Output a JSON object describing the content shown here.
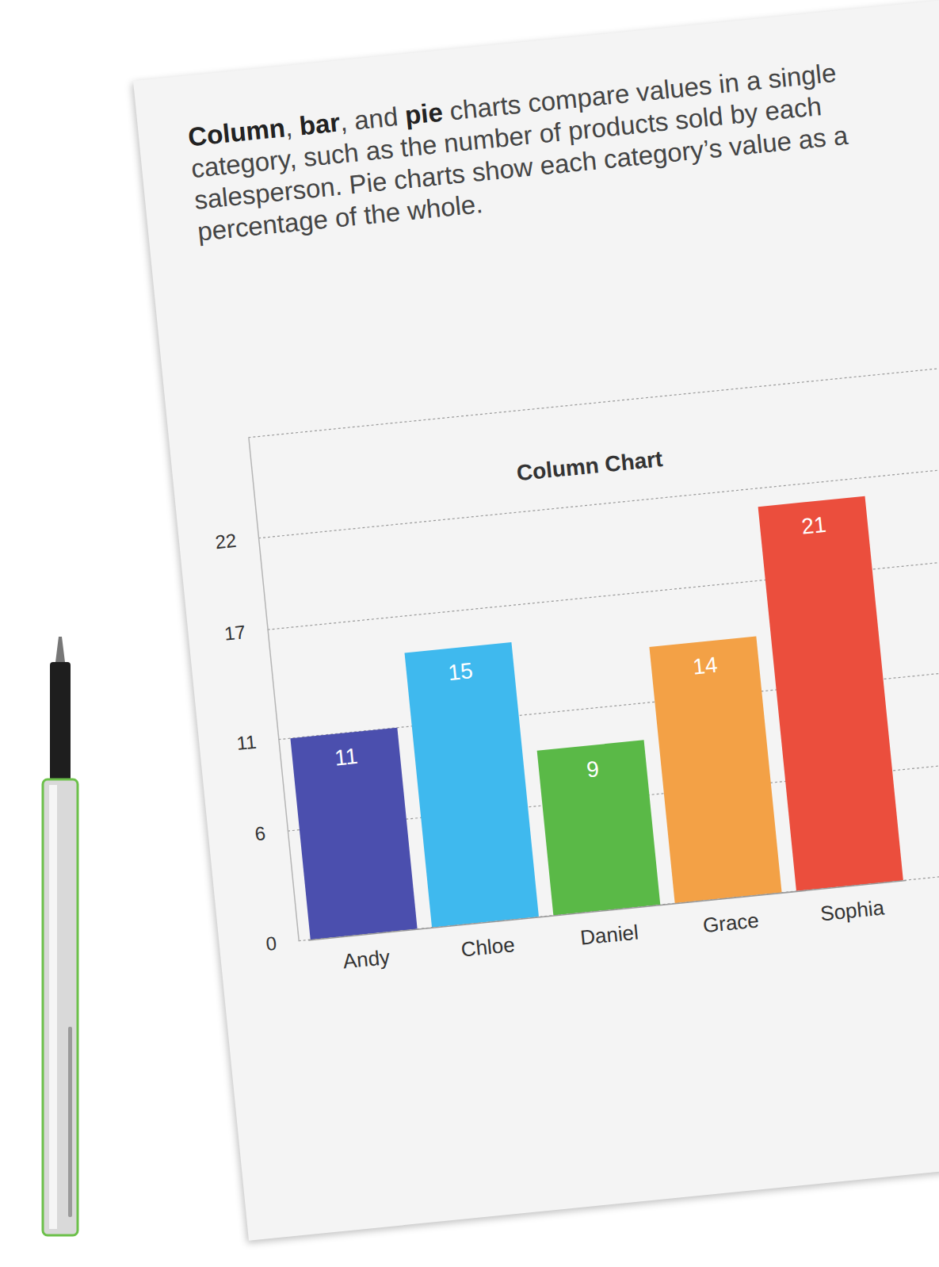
{
  "text": {
    "paragraph": [
      {
        "text": "Column",
        "bold": true
      },
      {
        "text": ", ",
        "bold": false
      },
      {
        "text": "bar",
        "bold": true
      },
      {
        "text": ", and ",
        "bold": false
      },
      {
        "text": "pie",
        "bold": true
      },
      {
        "text": " charts compare values in a single category, such as the number of products sold by each salesperson. Pie charts show each category’s value as a percentage of the whole.",
        "bold": false
      }
    ]
  },
  "chart_data": {
    "type": "bar",
    "title": "Column Chart",
    "categories": [
      "Andy",
      "Chloe",
      "Daniel",
      "Grace",
      "Sophia"
    ],
    "values": [
      11,
      15,
      9,
      14,
      21
    ],
    "colors": [
      "#4b4fae",
      "#3fb9ee",
      "#5ab947",
      "#f3a146",
      "#eb4e3d"
    ],
    "ylim": [
      0,
      27.5
    ],
    "yticks": [
      0,
      6,
      11,
      17,
      22
    ],
    "grid": true,
    "data_labels": true
  }
}
